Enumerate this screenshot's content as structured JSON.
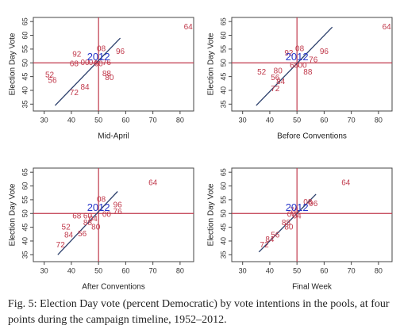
{
  "chart_data": [
    {
      "type": "scatter",
      "xlabel": "Mid-April",
      "ylabel": "Election Day Vote",
      "xlim": [
        26,
        85
      ],
      "ylim": [
        32.5,
        66.5
      ],
      "xticks": [
        30,
        40,
        50,
        60,
        70,
        80
      ],
      "yticks": [
        35,
        40,
        45,
        50,
        55,
        60,
        65
      ],
      "points": {
        "x": [
          32,
          33,
          41,
          42,
          45,
          48,
          50,
          53,
          51,
          58,
          53,
          54,
          45,
          41,
          83
        ],
        "y": [
          45.5,
          43.5,
          49.5,
          53,
          50,
          50,
          49.5,
          50,
          55,
          54,
          46,
          44.5,
          41,
          39,
          63
        ],
        "labels": [
          "52",
          "56",
          "68",
          "92",
          "00",
          "04",
          "60",
          "76",
          "08",
          "96",
          "88",
          "80",
          "84",
          "72",
          "64"
        ]
      },
      "color": "#c0394b",
      "highlight": {
        "x": 50,
        "y": 52,
        "label": "2012",
        "color": "#2636c9"
      },
      "ref_lines": {
        "x": 50,
        "y": 50,
        "color": "#c0394b"
      },
      "fit_line": {
        "x": [
          34,
          58
        ],
        "y": [
          34.5,
          59
        ],
        "color": "#2b3f6b"
      }
    },
    {
      "type": "scatter",
      "xlabel": "Before Conventions",
      "ylabel": "Election Day Vote",
      "xlim": [
        26,
        85
      ],
      "ylim": [
        32.5,
        66.5
      ],
      "xticks": [
        30,
        40,
        50,
        60,
        70,
        80
      ],
      "yticks": [
        35,
        40,
        45,
        50,
        55,
        60,
        65
      ],
      "points": {
        "x": [
          37,
          43,
          42,
          44,
          42,
          47,
          51,
          60,
          56,
          54,
          49,
          52,
          83
        ],
        "y": [
          46.5,
          47,
          44.5,
          43,
          40.5,
          53.5,
          55,
          54,
          51,
          46.5,
          49,
          49,
          63
        ],
        "labels": [
          "52",
          "80",
          "56",
          "84",
          "72",
          "92",
          "08",
          "96",
          "76",
          "88",
          "68",
          "00",
          "64"
        ]
      },
      "color": "#c0394b",
      "highlight": {
        "x": 50,
        "y": 52,
        "label": "2012",
        "color": "#2636c9"
      },
      "ref_lines": {
        "x": 50,
        "y": 50,
        "color": "#c0394b"
      },
      "fit_line": {
        "x": [
          35,
          63
        ],
        "y": [
          34.5,
          63
        ],
        "color": "#2b3f6b"
      }
    },
    {
      "type": "scatter",
      "xlabel": "After Conventions",
      "ylabel": "Election Day Vote",
      "xlim": [
        26,
        85
      ],
      "ylim": [
        32.5,
        66.5
      ],
      "xticks": [
        30,
        40,
        50,
        60,
        70,
        80
      ],
      "yticks": [
        35,
        40,
        45,
        50,
        55,
        60,
        65
      ],
      "points": {
        "x": [
          70,
          51,
          57,
          57,
          53,
          42,
          46,
          48,
          46,
          49,
          38,
          44,
          39,
          36
        ],
        "y": [
          61,
          55,
          53,
          50.5,
          49.5,
          49,
          49,
          48,
          46.5,
          45,
          45,
          42.5,
          42,
          38.5
        ],
        "labels": [
          "64",
          "08",
          "96",
          "76",
          "00",
          "68",
          "60",
          "04",
          "88",
          "80",
          "52",
          "56",
          "84",
          "72"
        ]
      },
      "color": "#c0394b",
      "highlight": {
        "x": 50,
        "y": 52,
        "label": "2012",
        "color": "#2636c9"
      },
      "ref_lines": {
        "x": 50,
        "y": 50,
        "color": "#c0394b"
      },
      "fit_line": {
        "x": [
          35,
          57
        ],
        "y": [
          35,
          58
        ],
        "color": "#2b3f6b"
      }
    },
    {
      "type": "scatter",
      "xlabel": "Final Week",
      "ylabel": "Election Day Vote",
      "xlim": [
        26,
        85
      ],
      "ylim": [
        32.5,
        66.5
      ],
      "xticks": [
        30,
        40,
        50,
        60,
        70,
        80
      ],
      "yticks": [
        35,
        40,
        45,
        50,
        55,
        60,
        65
      ],
      "points": {
        "x": [
          68,
          54,
          56,
          49,
          48,
          50,
          46,
          47,
          42,
          40,
          38
        ],
        "y": [
          61,
          54,
          53.5,
          51,
          49.5,
          49,
          46.5,
          45,
          42,
          40.5,
          38.5
        ],
        "labels": [
          "64",
          "08",
          "96",
          "76",
          "00",
          "04",
          "88",
          "80",
          "56",
          "84",
          "72"
        ]
      },
      "color": "#c0394b",
      "highlight": {
        "x": 50,
        "y": 52,
        "label": "2012",
        "color": "#2636c9"
      },
      "ref_lines": {
        "x": 50,
        "y": 50,
        "color": "#c0394b"
      },
      "fit_line": {
        "x": [
          36,
          57
        ],
        "y": [
          36,
          57
        ],
        "color": "#2b3f6b"
      }
    }
  ],
  "caption": "Fig. 5: Election Day vote (percent Democratic) by vote intentions in the pools, at four points during the campaign timeline, 1952–2012."
}
